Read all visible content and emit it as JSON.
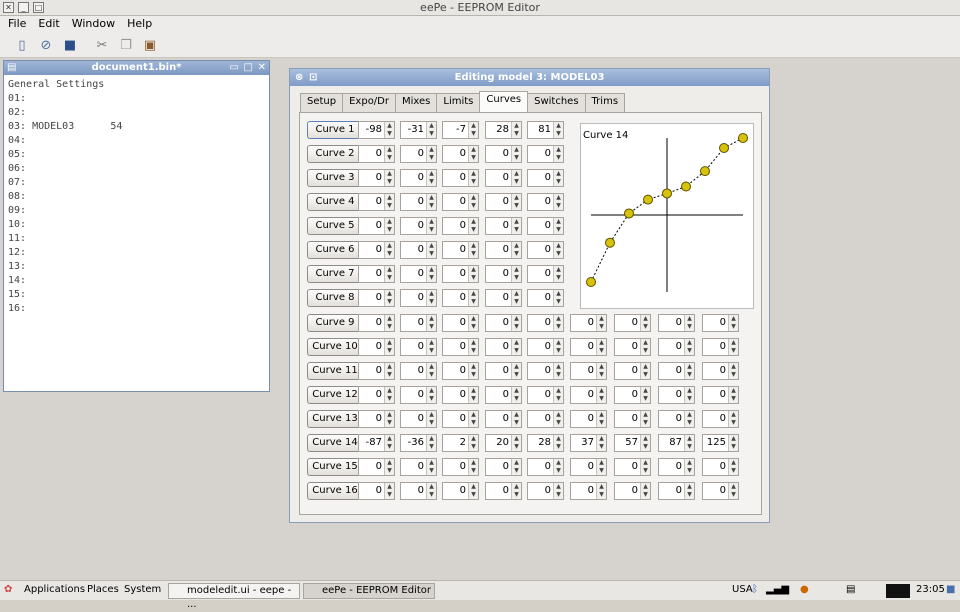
{
  "window": {
    "title": "eePe - EEPROM Editor"
  },
  "menu": [
    "File",
    "Edit",
    "Window",
    "Help"
  ],
  "toolbar_icons": [
    "new-icon",
    "open-icon",
    "save-icon",
    "cut-icon",
    "copy-icon",
    "paste-icon"
  ],
  "doc": {
    "title": "document1.bin*",
    "lines": [
      "General Settings",
      "01:",
      "02:",
      "03: MODEL03      54",
      "04:",
      "05:",
      "06:",
      "07:",
      "08:",
      "09:",
      "10:",
      "11:",
      "12:",
      "13:",
      "14:",
      "15:",
      "16:"
    ]
  },
  "dialog": {
    "title": "Editing model 3: MODEL03",
    "tabs": [
      "Setup",
      "Expo/Dr",
      "Mixes",
      "Limits",
      "Curves",
      "Switches",
      "Trims"
    ],
    "active_tab": "Curves",
    "curves": [
      {
        "label": "Curve 1",
        "values": [
          -98,
          -31,
          -7,
          28,
          81
        ]
      },
      {
        "label": "Curve 2",
        "values": [
          0,
          0,
          0,
          0,
          0
        ]
      },
      {
        "label": "Curve 3",
        "values": [
          0,
          0,
          0,
          0,
          0
        ]
      },
      {
        "label": "Curve 4",
        "values": [
          0,
          0,
          0,
          0,
          0
        ]
      },
      {
        "label": "Curve 5",
        "values": [
          0,
          0,
          0,
          0,
          0
        ]
      },
      {
        "label": "Curve 6",
        "values": [
          0,
          0,
          0,
          0,
          0
        ]
      },
      {
        "label": "Curve 7",
        "values": [
          0,
          0,
          0,
          0,
          0
        ]
      },
      {
        "label": "Curve 8",
        "values": [
          0,
          0,
          0,
          0,
          0
        ]
      },
      {
        "label": "Curve 9",
        "values": [
          0,
          0,
          0,
          0,
          0,
          0,
          0,
          0,
          0
        ]
      },
      {
        "label": "Curve 10",
        "values": [
          0,
          0,
          0,
          0,
          0,
          0,
          0,
          0,
          0
        ]
      },
      {
        "label": "Curve 11",
        "values": [
          0,
          0,
          0,
          0,
          0,
          0,
          0,
          0,
          0
        ]
      },
      {
        "label": "Curve 12",
        "values": [
          0,
          0,
          0,
          0,
          0,
          0,
          0,
          0,
          0
        ]
      },
      {
        "label": "Curve 13",
        "values": [
          0,
          0,
          0,
          0,
          0,
          0,
          0,
          0,
          0
        ]
      },
      {
        "label": "Curve 14",
        "values": [
          -87,
          -36,
          2,
          20,
          28,
          37,
          57,
          87,
          125
        ]
      },
      {
        "label": "Curve 15",
        "values": [
          0,
          0,
          0,
          0,
          0,
          0,
          0,
          0,
          0
        ]
      },
      {
        "label": "Curve 16",
        "values": [
          0,
          0,
          0,
          0,
          0,
          0,
          0,
          0,
          0
        ]
      }
    ],
    "preview": {
      "title": "Curve 14",
      "range": [
        -100,
        100
      ]
    }
  },
  "taskbar": {
    "menus": [
      "Applications",
      "Places",
      "System"
    ],
    "tasks": [
      "modeledit.ui - eepe - ...",
      "eePe - EEPROM Editor"
    ],
    "keyboard": "USA",
    "clock": "23:05"
  }
}
